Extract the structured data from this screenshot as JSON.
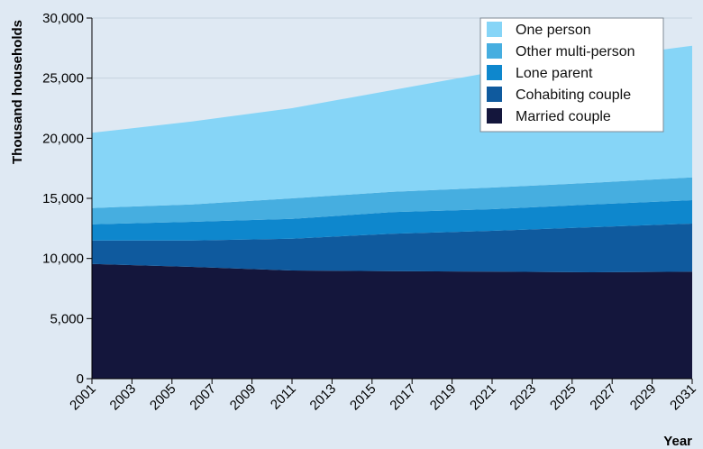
{
  "chart_data": {
    "type": "area",
    "stacked": true,
    "xlabel": "Year",
    "ylabel": "Thousand households",
    "ylim": [
      0,
      30000
    ],
    "yticks": [
      0,
      5000,
      10000,
      15000,
      20000,
      25000,
      30000
    ],
    "ytick_labels": [
      "0",
      "5,000",
      "10,000",
      "15,000",
      "20,000",
      "25,000",
      "30,000"
    ],
    "xlim": [
      2001,
      2031
    ],
    "xticks": [
      2001,
      2003,
      2005,
      2007,
      2009,
      2011,
      2013,
      2015,
      2017,
      2019,
      2021,
      2023,
      2025,
      2027,
      2029,
      2031
    ],
    "xtick_labels": [
      "2001",
      "2003",
      "2005",
      "2007",
      "2009",
      "2011",
      "2013",
      "2015",
      "2017",
      "2019",
      "2021",
      "2023",
      "2025",
      "2027",
      "2029",
      "2031"
    ],
    "legend_position": "top-right",
    "x": [
      2001,
      2006,
      2011,
      2016,
      2021,
      2026,
      2031
    ],
    "series": [
      {
        "name": "Married couple",
        "color": "#14163c",
        "values": [
          9550,
          9300,
          9000,
          8950,
          8900,
          8850,
          8900
        ]
      },
      {
        "name": "Cohabiting couple",
        "color": "#0f5a9e",
        "values": [
          1950,
          2200,
          2650,
          3100,
          3400,
          3750,
          4000
        ]
      },
      {
        "name": "Lone parent",
        "color": "#0e87cd",
        "values": [
          1350,
          1550,
          1650,
          1800,
          1800,
          1900,
          1950
        ]
      },
      {
        "name": "Other multi-person",
        "color": "#46aee0",
        "values": [
          1350,
          1450,
          1700,
          1700,
          1800,
          1800,
          1900
        ]
      },
      {
        "name": "One person",
        "color": "#86d5f7",
        "values": [
          6250,
          6900,
          7500,
          8450,
          9600,
          10300,
          10950
        ]
      }
    ],
    "legend_order": [
      "One person",
      "Other multi-person",
      "Lone parent",
      "Cohabiting couple",
      "Married couple"
    ]
  }
}
